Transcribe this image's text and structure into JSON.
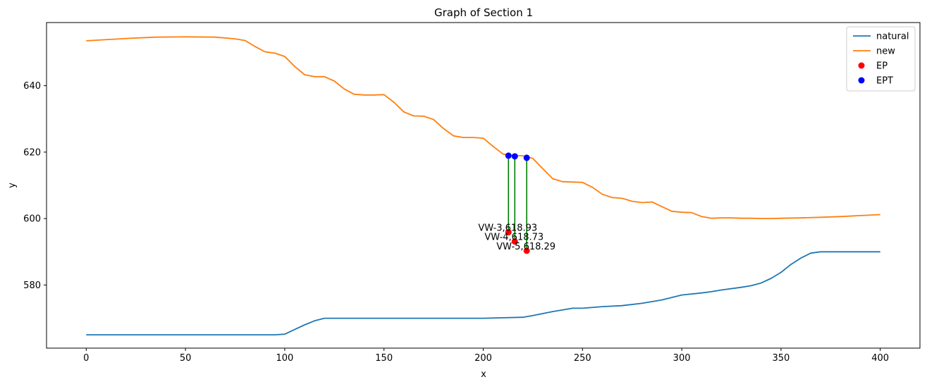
{
  "chart_data": {
    "type": "line",
    "title": "Graph of Section 1",
    "xlabel": "x",
    "ylabel": "y",
    "xlim": [
      -20,
      420
    ],
    "ylim": [
      561,
      659
    ],
    "xticks": [
      0,
      50,
      100,
      150,
      200,
      250,
      300,
      350,
      400
    ],
    "yticks": [
      580,
      600,
      620,
      640
    ],
    "grid": false,
    "legend_position": "top-right",
    "series": [
      {
        "name": "natural",
        "kind": "line",
        "color": "#1f77b4",
        "x": [
          0,
          50,
          95,
          100,
          105,
          110,
          115,
          120,
          150,
          200,
          220,
          225,
          235,
          245,
          250,
          260,
          270,
          280,
          285,
          290,
          300,
          310,
          315,
          320,
          330,
          335,
          340,
          345,
          350,
          355,
          360,
          365,
          370,
          380,
          400
        ],
        "y": [
          565,
          565,
          565,
          565.2,
          566.6,
          568,
          569.2,
          570,
          570,
          570,
          570.3,
          570.8,
          572,
          573,
          573,
          573.5,
          573.8,
          574.5,
          575,
          575.5,
          577,
          577.6,
          578,
          578.5,
          579.3,
          579.8,
          580.6,
          582,
          583.8,
          586.2,
          588.1,
          589.6,
          590,
          590,
          590
        ]
      },
      {
        "name": "new",
        "kind": "line",
        "color": "#ff7f0e",
        "x": [
          0,
          20,
          35,
          50,
          65,
          75,
          80,
          85,
          90,
          95,
          100,
          105,
          110,
          115,
          120,
          125,
          130,
          135,
          140,
          145,
          150,
          155,
          160,
          165,
          170,
          175,
          180,
          185,
          190,
          195,
          200,
          205,
          210,
          215,
          220,
          225,
          230,
          235,
          240,
          245,
          250,
          255,
          260,
          265,
          270,
          275,
          280,
          285,
          290,
          295,
          300,
          305,
          310,
          315,
          320,
          325,
          330,
          335,
          340,
          345,
          350,
          360,
          370,
          380,
          390,
          400
        ],
        "y": [
          653.5,
          654.2,
          654.6,
          654.7,
          654.6,
          654.1,
          653.6,
          651.8,
          650.2,
          649.8,
          648.8,
          645.8,
          643.3,
          642.7,
          642.7,
          641.4,
          639,
          637.4,
          637.2,
          637.2,
          637.3,
          635,
          632.1,
          630.9,
          630.8,
          629.8,
          627.1,
          624.9,
          624.4,
          624.4,
          624.2,
          621.7,
          619.4,
          619,
          618.9,
          618.1,
          615,
          612,
          611.1,
          611,
          610.9,
          609.4,
          607.3,
          606.3,
          606.1,
          605.2,
          604.8,
          605,
          603.6,
          602.2,
          601.9,
          601.8,
          600.6,
          600.1,
          600.2,
          600.2,
          600.1,
          600.1,
          600,
          600,
          600.1,
          600.2,
          600.4,
          600.6,
          600.9,
          601.2
        ]
      },
      {
        "name": "EP",
        "kind": "scatter",
        "color": "#ff0000",
        "points": [
          {
            "x": 212.7,
            "y": 595.9
          },
          {
            "x": 215.9,
            "y": 593.1
          },
          {
            "x": 221.9,
            "y": 590.3
          }
        ]
      },
      {
        "name": "EPT",
        "kind": "scatter",
        "color": "#0000ff",
        "points": [
          {
            "x": 212.7,
            "y": 618.93
          },
          {
            "x": 215.9,
            "y": 618.73
          },
          {
            "x": 221.9,
            "y": 618.29
          }
        ]
      }
    ],
    "connectors": {
      "color": "#008000",
      "lines": [
        {
          "x": 212.7,
          "y_bottom": 595.9,
          "y_top": 618.93
        },
        {
          "x": 215.9,
          "y_bottom": 593.1,
          "y_top": 618.73
        },
        {
          "x": 221.9,
          "y_bottom": 590.3,
          "y_top": 618.29
        }
      ]
    },
    "annotations": [
      {
        "text": "VW-3,618.93",
        "x": 212.7,
        "y": 595.9
      },
      {
        "text": "VW-4,618.73",
        "x": 215.9,
        "y": 593.1
      },
      {
        "text": "VW-5,618.29",
        "x": 221.9,
        "y": 590.3
      }
    ]
  }
}
